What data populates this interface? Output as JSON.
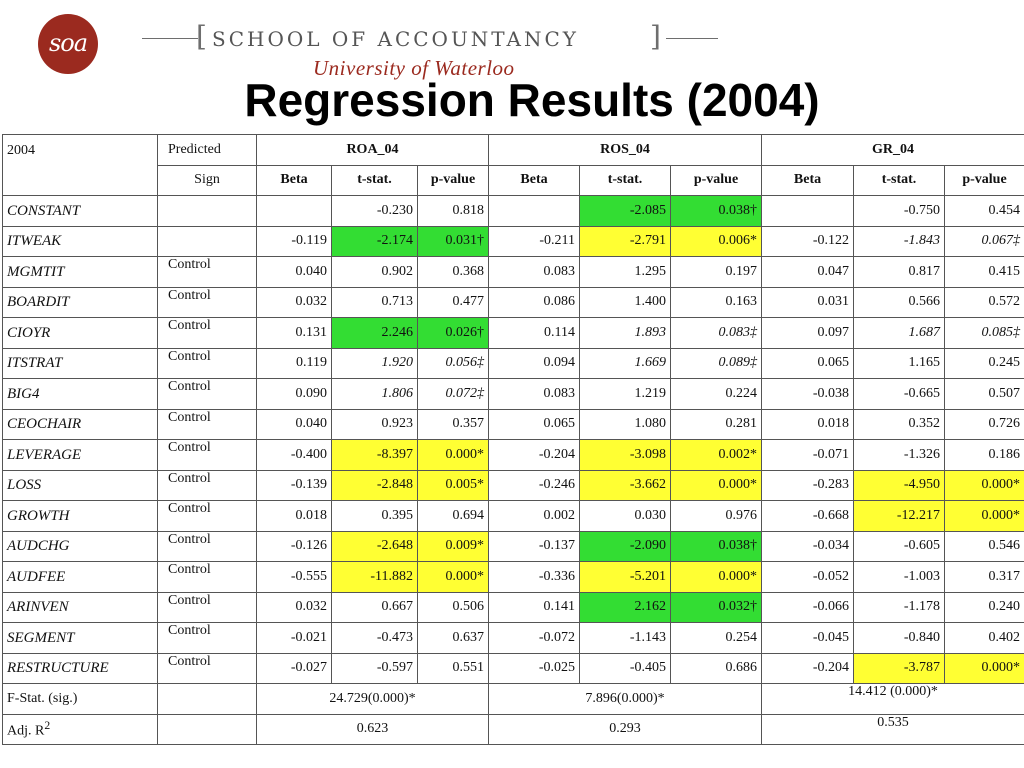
{
  "header": {
    "logo_text": "soa",
    "school": "SCHOOL OF ACCOUNTANCY",
    "university": "University of Waterloo",
    "title": "Regression Results (2004)"
  },
  "table": {
    "year_label": "2004",
    "predicted_label": "Predicted",
    "sign_label": "Sign",
    "groups": [
      "ROA_04",
      "ROS_04",
      "GR_04"
    ],
    "sub_headers": [
      "Beta",
      "t-stat.",
      "p-value",
      "Beta",
      "t-stat.",
      "p-value",
      "Beta",
      "t-stat.",
      "p-value"
    ],
    "rows": [
      {
        "var": "CONSTANT",
        "sign": "",
        "cells": [
          "",
          "-0.230",
          "0.818",
          "",
          "-2.085",
          "0.038†",
          "",
          "-0.750",
          "0.454"
        ],
        "hl": [
          "",
          "",
          "",
          "",
          "g",
          "g",
          "",
          "",
          ""
        ]
      },
      {
        "var": "ITWEAK",
        "sign": "",
        "cells": [
          "-0.119",
          "-2.174",
          "0.031†",
          "-0.211",
          "-2.791",
          "0.006*",
          "-0.122",
          "-1.843",
          "0.067‡"
        ],
        "hl": [
          "",
          "g",
          "g",
          "",
          "y",
          "y",
          "",
          "b",
          "b"
        ]
      },
      {
        "var": "MGMTIT",
        "sign": "Control",
        "cells": [
          "0.040",
          "0.902",
          "0.368",
          "0.083",
          "1.295",
          "0.197",
          "0.047",
          "0.817",
          "0.415"
        ],
        "hl": [
          "",
          "",
          "",
          "",
          "",
          "",
          "",
          "",
          ""
        ]
      },
      {
        "var": "BOARDIT",
        "sign": "Control",
        "cells": [
          "0.032",
          "0.713",
          "0.477",
          "0.086",
          "1.400",
          "0.163",
          "0.031",
          "0.566",
          "0.572"
        ],
        "hl": [
          "",
          "",
          "",
          "",
          "",
          "",
          "",
          "",
          ""
        ]
      },
      {
        "var": "CIOYR",
        "sign": "Control",
        "cells": [
          "0.131",
          "2.246",
          "0.026†",
          "0.114",
          "1.893",
          "0.083‡",
          "0.097",
          "1.687",
          "0.085‡"
        ],
        "hl": [
          "",
          "g",
          "g",
          "",
          "b",
          "b",
          "",
          "b",
          "b"
        ]
      },
      {
        "var": "ITSTRAT",
        "sign": "Control",
        "cells": [
          "0.119",
          "1.920",
          "0.056‡",
          "0.094",
          "1.669",
          "0.089‡",
          "0.065",
          "1.165",
          "0.245"
        ],
        "hl": [
          "",
          "b",
          "b",
          "",
          "b",
          "b",
          "",
          "",
          ""
        ]
      },
      {
        "var": "BIG4",
        "sign": "Control",
        "cells": [
          "0.090",
          "1.806",
          "0.072‡",
          "0.083",
          "1.219",
          "0.224",
          "-0.038",
          "-0.665",
          "0.507"
        ],
        "hl": [
          "",
          "b",
          "b",
          "",
          "",
          "",
          "",
          "",
          ""
        ]
      },
      {
        "var": "CEOCHAIR",
        "sign": "Control",
        "cells": [
          "0.040",
          "0.923",
          "0.357",
          "0.065",
          "1.080",
          "0.281",
          "0.018",
          "0.352",
          "0.726"
        ],
        "hl": [
          "",
          "",
          "",
          "",
          "",
          "",
          "",
          "",
          ""
        ]
      },
      {
        "var": "LEVERAGE",
        "sign": "Control",
        "cells": [
          "-0.400",
          "-8.397",
          "0.000*",
          "-0.204",
          "-3.098",
          "0.002*",
          "-0.071",
          "-1.326",
          "0.186"
        ],
        "hl": [
          "",
          "y",
          "y",
          "",
          "y",
          "y",
          "",
          "",
          ""
        ]
      },
      {
        "var": "LOSS",
        "sign": "Control",
        "cells": [
          "-0.139",
          "-2.848",
          "0.005*",
          "-0.246",
          "-3.662",
          "0.000*",
          "-0.283",
          "-4.950",
          "0.000*"
        ],
        "hl": [
          "",
          "y",
          "y",
          "",
          "y",
          "y",
          "",
          "y",
          "y"
        ]
      },
      {
        "var": "GROWTH",
        "sign": "Control",
        "cells": [
          "0.018",
          "0.395",
          "0.694",
          "0.002",
          "0.030",
          "0.976",
          "-0.668",
          "-12.217",
          "0.000*"
        ],
        "hl": [
          "",
          "",
          "",
          "",
          "",
          "",
          "",
          "y",
          "y"
        ]
      },
      {
        "var": "AUDCHG",
        "sign": "Control",
        "cells": [
          "-0.126",
          "-2.648",
          "0.009*",
          "-0.137",
          "-2.090",
          "0.038†",
          "-0.034",
          "-0.605",
          "0.546"
        ],
        "hl": [
          "",
          "y",
          "y",
          "",
          "g",
          "g",
          "",
          "",
          ""
        ]
      },
      {
        "var": "AUDFEE",
        "sign": "Control",
        "cells": [
          "-0.555",
          "-11.882",
          "0.000*",
          "-0.336",
          "-5.201",
          "0.000*",
          "-0.052",
          "-1.003",
          "0.317"
        ],
        "hl": [
          "",
          "y",
          "y",
          "",
          "y",
          "y",
          "",
          "",
          ""
        ]
      },
      {
        "var": "ARINVEN",
        "sign": "Control",
        "cells": [
          "0.032",
          "0.667",
          "0.506",
          "0.141",
          "2.162",
          "0.032†",
          "-0.066",
          "-1.178",
          "0.240"
        ],
        "hl": [
          "",
          "",
          "",
          "",
          "g",
          "g",
          "",
          "",
          ""
        ]
      },
      {
        "var": "SEGMENT",
        "sign": "Control",
        "cells": [
          "-0.021",
          "-0.473",
          "0.637",
          "-0.072",
          "-1.143",
          "0.254",
          "-0.045",
          "-0.840",
          "0.402"
        ],
        "hl": [
          "",
          "",
          "",
          "",
          "",
          "",
          "",
          "",
          ""
        ]
      },
      {
        "var": "RESTRUCTURE",
        "sign": "Control",
        "cells": [
          "-0.027",
          "-0.597",
          "0.551",
          "-0.025",
          "-0.405",
          "0.686",
          "-0.204",
          "-3.787",
          "0.000*"
        ],
        "hl": [
          "",
          "",
          "",
          "",
          "",
          "",
          "",
          "y",
          "y"
        ]
      }
    ],
    "fstat_label": "F-Stat. (sig.)",
    "fstat": [
      "24.729(0.000)*",
      "7.896(0.000)*",
      "14.412 (0.000)*"
    ],
    "adjr2_label": "Adj. R",
    "adjr2_sup": "2",
    "adjr2": [
      "0.623",
      "0.293",
      "0.535"
    ]
  },
  "colors": {
    "yellow": "#ffff33",
    "green": "#33dd33",
    "logo": "#9b2a1f"
  }
}
